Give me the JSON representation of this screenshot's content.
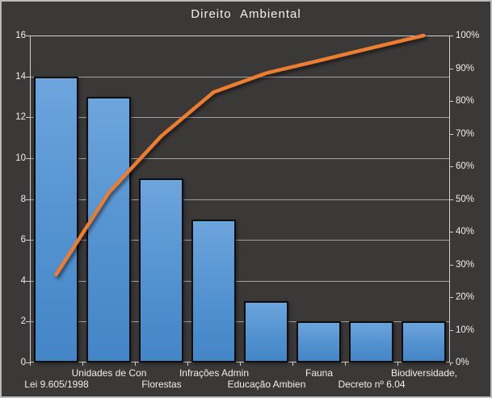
{
  "chart": {
    "title": "Direito Ambiental",
    "background_color": "#3b3838",
    "text_color": "#f2f2f2",
    "gridline_color": "#b5b3b3",
    "plot_border_color": "#cfcdcd",
    "bar_fill_top": "#6da5dd",
    "bar_fill_bottom": "#4385c7",
    "bar_border_color": "#0d0d0d",
    "line_color": "#ed7d31"
  },
  "chart_data": {
    "type": "bar",
    "subtype": "pareto-combo-bar-line",
    "title": "Direito Ambiental",
    "categories": [
      "Lei 9.605/1998",
      "Unidades de Con",
      "Florestas",
      "Infrações Admin",
      "Educação Ambien",
      "Fauna",
      "Decreto nº 6.04",
      "Biodiversidade,"
    ],
    "bar_values": [
      14,
      13,
      9,
      7,
      3,
      2,
      2,
      2
    ],
    "cumulative_line_pct": [
      26.9,
      51.9,
      69.2,
      82.7,
      88.5,
      92.3,
      96.2,
      100
    ],
    "left_axis": {
      "label": "",
      "min": 0,
      "max": 16,
      "step": 2,
      "tick_labels": [
        "0",
        "2",
        "4",
        "6",
        "8",
        "10",
        "12",
        "14",
        "16"
      ]
    },
    "right_axis": {
      "label": "",
      "min_pct": 0,
      "max_pct": 100,
      "step_pct": 10,
      "tick_labels": [
        "0%",
        "10%",
        "20%",
        "30%",
        "40%",
        "50%",
        "60%",
        "70%",
        "80%",
        "90%",
        "100%"
      ]
    },
    "grid": "horizontal-major-left-axis",
    "legend": "none",
    "bar_color": "#5b9bd5",
    "line_color": "#ed7d31"
  }
}
